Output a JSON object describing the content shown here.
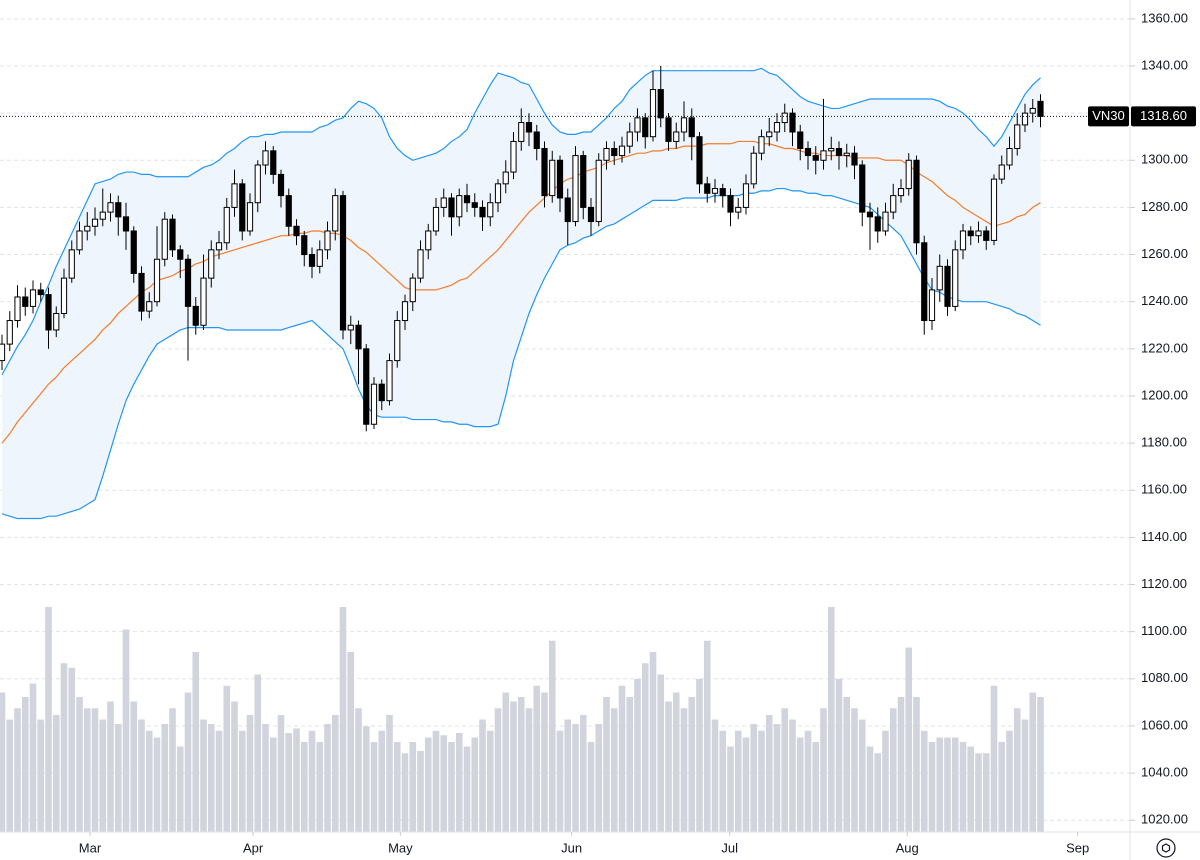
{
  "chart_data": {
    "type": "candlestick",
    "ylim": [
      1015,
      1368
    ],
    "yticks": [
      {
        "value": 1020,
        "label": "1020.00"
      },
      {
        "value": 1040,
        "label": "1040.00"
      },
      {
        "value": 1060,
        "label": "1060.00"
      },
      {
        "value": 1080,
        "label": "1080.00"
      },
      {
        "value": 1100,
        "label": "1100.00"
      },
      {
        "value": 1120,
        "label": "1120.00"
      },
      {
        "value": 1140,
        "label": "1140.00"
      },
      {
        "value": 1160,
        "label": "1160.00"
      },
      {
        "value": 1180,
        "label": "1180.00"
      },
      {
        "value": 1200,
        "label": "1200.00"
      },
      {
        "value": 1220,
        "label": "1220.00"
      },
      {
        "value": 1240,
        "label": "1240.00"
      },
      {
        "value": 1260,
        "label": "1260.00"
      },
      {
        "value": 1280,
        "label": "1280.00"
      },
      {
        "value": 1300,
        "label": "1300.00"
      },
      {
        "value": 1320,
        "label": "1320.00"
      },
      {
        "value": 1340,
        "label": "1340.00"
      },
      {
        "value": 1360,
        "label": "1360.00"
      }
    ],
    "xlim": [
      -0.26,
      145.55
    ],
    "xticks": [
      {
        "value": 11.35,
        "label": "Mar"
      },
      {
        "value": 32.4,
        "label": "Apr"
      },
      {
        "value": 51.4,
        "label": "May"
      },
      {
        "value": 73.5,
        "label": "Jun"
      },
      {
        "value": 93.9,
        "label": "Jul"
      },
      {
        "value": 116.8,
        "label": "Aug"
      },
      {
        "value": 138.8,
        "label": "Sep"
      }
    ],
    "grid": true,
    "up_color": "#ffffff",
    "down_color": "#000000",
    "volume_color": "#d1d4dc",
    "last_price": {
      "value": 1318.6,
      "label": "1318.60"
    },
    "series": [
      {
        "name": "VN30",
        "open": [
          1215,
          1222,
          1232,
          1242,
          1238,
          1245,
          1243,
          1228,
          1235,
          1250,
          1262,
          1270,
          1272,
          1275,
          1278,
          1282,
          1276,
          1270,
          1252,
          1236,
          1240,
          1258,
          1275,
          1262,
          1258,
          1238,
          1230,
          1250,
          1262,
          1265,
          1280,
          1290,
          1270,
          1282,
          1298,
          1304,
          1294,
          1285,
          1272,
          1268,
          1260,
          1255,
          1262,
          1270,
          1285,
          1228,
          1230,
          1220,
          1188,
          1205,
          1198,
          1215,
          1232,
          1240,
          1250,
          1262,
          1270,
          1280,
          1284,
          1276,
          1285,
          1282,
          1280,
          1276,
          1282,
          1290,
          1295,
          1308,
          1316,
          1312,
          1305,
          1285,
          1300,
          1284,
          1274,
          1302,
          1280,
          1274,
          1300,
          1305,
          1302,
          1306,
          1312,
          1318,
          1310,
          1330,
          1318,
          1308,
          1312,
          1318,
          1310,
          1290,
          1286,
          1288,
          1285,
          1278,
          1280,
          1290,
          1303,
          1310,
          1312,
          1316,
          1320,
          1312,
          1305,
          1302,
          1300,
          1304,
          1305,
          1302,
          1303,
          1298,
          1278,
          1276,
          1270,
          1278,
          1285,
          1288,
          1300,
          1265,
          1232,
          1245,
          1255,
          1238,
          1262,
          1270,
          1268,
          1270,
          1266,
          1292,
          1298,
          1305,
          1315,
          1320,
          1325
        ],
        "high": [
          1226,
          1236,
          1247,
          1246,
          1249,
          1248,
          1246,
          1238,
          1254,
          1266,
          1274,
          1278,
          1280,
          1288,
          1286,
          1285,
          1282,
          1272,
          1255,
          1244,
          1272,
          1278,
          1277,
          1264,
          1260,
          1242,
          1260,
          1266,
          1270,
          1284,
          1296,
          1292,
          1286,
          1300,
          1308,
          1306,
          1296,
          1288,
          1275,
          1270,
          1263,
          1266,
          1274,
          1288,
          1287,
          1234,
          1232,
          1222,
          1208,
          1207,
          1218,
          1236,
          1243,
          1252,
          1266,
          1273,
          1284,
          1288,
          1286,
          1288,
          1290,
          1286,
          1283,
          1286,
          1292,
          1300,
          1312,
          1322,
          1320,
          1315,
          1308,
          1304,
          1302,
          1288,
          1306,
          1304,
          1284,
          1303,
          1308,
          1308,
          1310,
          1316,
          1322,
          1320,
          1338,
          1340,
          1320,
          1316,
          1325,
          1322,
          1312,
          1293,
          1292,
          1290,
          1288,
          1284,
          1294,
          1306,
          1313,
          1318,
          1320,
          1324,
          1322,
          1315,
          1308,
          1306,
          1326,
          1310,
          1308,
          1307,
          1306,
          1300,
          1282,
          1280,
          1282,
          1290,
          1292,
          1303,
          1302,
          1268,
          1250,
          1260,
          1258,
          1266,
          1273,
          1272,
          1274,
          1272,
          1294,
          1302,
          1310,
          1320,
          1324,
          1326,
          1328
        ],
        "low": [
          1211,
          1219,
          1229,
          1234,
          1235,
          1240,
          1220,
          1225,
          1233,
          1248,
          1260,
          1266,
          1268,
          1272,
          1274,
          1268,
          1262,
          1248,
          1232,
          1233,
          1238,
          1255,
          1259,
          1250,
          1215,
          1226,
          1228,
          1246,
          1258,
          1262,
          1276,
          1266,
          1268,
          1278,
          1294,
          1290,
          1280,
          1268,
          1264,
          1255,
          1250,
          1252,
          1258,
          1266,
          1224,
          1222,
          1205,
          1185,
          1186,
          1194,
          1196,
          1212,
          1228,
          1236,
          1248,
          1258,
          1268,
          1276,
          1268,
          1272,
          1278,
          1276,
          1270,
          1272,
          1278,
          1286,
          1292,
          1304,
          1306,
          1300,
          1280,
          1282,
          1278,
          1264,
          1272,
          1275,
          1268,
          1272,
          1296,
          1298,
          1299,
          1303,
          1308,
          1305,
          1308,
          1314,
          1304,
          1305,
          1308,
          1300,
          1286,
          1282,
          1282,
          1280,
          1272,
          1275,
          1277,
          1288,
          1300,
          1306,
          1308,
          1312,
          1306,
          1300,
          1296,
          1294,
          1296,
          1300,
          1296,
          1297,
          1292,
          1272,
          1262,
          1265,
          1268,
          1275,
          1282,
          1285,
          1260,
          1226,
          1228,
          1240,
          1234,
          1236,
          1258,
          1264,
          1265,
          1262,
          1264,
          1290,
          1296,
          1302,
          1312,
          1316,
          1314
        ],
        "close": [
          1222,
          1232,
          1242,
          1238,
          1245,
          1243,
          1228,
          1235,
          1250,
          1262,
          1270,
          1272,
          1275,
          1278,
          1282,
          1276,
          1270,
          1252,
          1236,
          1240,
          1258,
          1275,
          1262,
          1258,
          1238,
          1230,
          1250,
          1262,
          1265,
          1280,
          1290,
          1270,
          1282,
          1298,
          1304,
          1294,
          1285,
          1272,
          1268,
          1260,
          1255,
          1262,
          1270,
          1285,
          1228,
          1230,
          1220,
          1188,
          1205,
          1198,
          1215,
          1232,
          1240,
          1250,
          1262,
          1270,
          1280,
          1284,
          1276,
          1285,
          1282,
          1280,
          1276,
          1282,
          1290,
          1295,
          1308,
          1316,
          1312,
          1305,
          1285,
          1300,
          1284,
          1274,
          1302,
          1280,
          1274,
          1300,
          1305,
          1302,
          1306,
          1312,
          1318,
          1310,
          1330,
          1318,
          1308,
          1312,
          1318,
          1310,
          1290,
          1286,
          1288,
          1285,
          1278,
          1280,
          1290,
          1303,
          1310,
          1312,
          1316,
          1320,
          1312,
          1305,
          1302,
          1300,
          1304,
          1305,
          1302,
          1303,
          1298,
          1278,
          1276,
          1270,
          1278,
          1285,
          1288,
          1300,
          1265,
          1232,
          1245,
          1255,
          1238,
          1262,
          1270,
          1268,
          1270,
          1266,
          1292,
          1298,
          1305,
          1315,
          1320,
          1322,
          1318.6
        ],
        "volume": [
          62,
          50,
          55,
          60,
          66,
          50,
          100,
          52,
          75,
          73,
          60,
          55,
          55,
          50,
          58,
          48,
          90,
          58,
          50,
          45,
          42,
          48,
          55,
          38,
          62,
          80,
          50,
          48,
          45,
          65,
          58,
          45,
          52,
          70,
          48,
          42,
          52,
          44,
          46,
          40,
          45,
          40,
          48,
          52,
          100,
          80,
          55,
          47,
          40,
          45,
          52,
          40,
          35,
          40,
          36,
          42,
          45,
          43,
          40,
          44,
          38,
          42,
          50,
          45,
          55,
          62,
          58,
          60,
          55,
          65,
          62,
          85,
          45,
          50,
          48,
          52,
          40,
          48,
          60,
          55,
          65,
          60,
          68,
          75,
          80,
          70,
          58,
          62,
          55,
          60,
          68,
          85,
          50,
          45,
          38,
          45,
          42,
          48,
          45,
          52,
          48,
          55,
          50,
          42,
          45,
          40,
          55,
          100,
          68,
          60,
          55,
          50,
          38,
          35,
          45,
          55,
          60,
          82,
          60,
          45,
          40,
          42,
          42,
          42,
          40,
          38,
          35,
          35,
          65,
          40,
          45,
          55,
          50,
          62,
          60
        ]
      }
    ],
    "bollinger": {
      "color": "#2196f3",
      "fill": "#eef5fd",
      "upper": [
        1209,
        1215,
        1221,
        1226,
        1232,
        1240,
        1247,
        1255,
        1262,
        1269,
        1276,
        1283,
        1290,
        1291,
        1292,
        1294,
        1295,
        1295,
        1294,
        1294,
        1293,
        1293,
        1293,
        1293,
        1293,
        1295,
        1297,
        1298,
        1300,
        1303,
        1305,
        1308,
        1310,
        1310,
        1311,
        1311,
        1312,
        1312,
        1312,
        1312,
        1312,
        1314,
        1315,
        1317,
        1318,
        1322,
        1325,
        1324,
        1322,
        1318,
        1310,
        1305,
        1302,
        1300,
        1301,
        1302,
        1303,
        1305,
        1308,
        1310,
        1313,
        1320,
        1326,
        1332,
        1337,
        1336,
        1335,
        1333,
        1332,
        1326,
        1320,
        1315,
        1312,
        1311,
        1311,
        1312,
        1312,
        1315,
        1318,
        1322,
        1325,
        1330,
        1333,
        1336,
        1338,
        1338,
        1338,
        1338,
        1338,
        1338,
        1338,
        1338,
        1338,
        1338,
        1338,
        1338,
        1338,
        1338,
        1339,
        1337,
        1336,
        1333,
        1330,
        1327,
        1325,
        1324,
        1323,
        1322,
        1322,
        1323,
        1324,
        1325,
        1326,
        1326,
        1326,
        1326,
        1326,
        1326,
        1326,
        1326,
        1326,
        1325,
        1323,
        1322,
        1320,
        1317,
        1313,
        1310,
        1306,
        1310,
        1316,
        1322,
        1328,
        1332,
        1335
      ],
      "lower": [
        1150,
        1149,
        1148,
        1148,
        1148,
        1148,
        1149,
        1149,
        1150,
        1151,
        1152,
        1154,
        1156,
        1166,
        1177,
        1188,
        1198,
        1205,
        1211,
        1217,
        1222,
        1224,
        1226,
        1228,
        1229,
        1229,
        1229,
        1229,
        1229,
        1228,
        1228,
        1228,
        1228,
        1228,
        1228,
        1228,
        1228,
        1229,
        1230,
        1231,
        1232,
        1229,
        1226,
        1223,
        1220,
        1212,
        1203,
        1196,
        1192,
        1191,
        1191,
        1191,
        1191,
        1190,
        1190,
        1190,
        1190,
        1189,
        1189,
        1188,
        1188,
        1187,
        1187,
        1187,
        1188,
        1200,
        1215,
        1225,
        1235,
        1243,
        1250,
        1256,
        1262,
        1264,
        1265,
        1267,
        1268,
        1270,
        1272,
        1273,
        1275,
        1277,
        1279,
        1281,
        1283,
        1283,
        1283,
        1283,
        1284,
        1284,
        1284,
        1284,
        1285,
        1285,
        1285,
        1285,
        1286,
        1286,
        1287,
        1287,
        1288,
        1288,
        1287,
        1287,
        1286,
        1286,
        1285,
        1285,
        1284,
        1283,
        1282,
        1281,
        1280,
        1277,
        1274,
        1271,
        1268,
        1262,
        1256,
        1250,
        1245,
        1244,
        1242,
        1241,
        1240,
        1240,
        1240,
        1240,
        1239,
        1238,
        1237,
        1235,
        1234,
        1232,
        1230
      ]
    },
    "moving_average": {
      "color": "#f57c2a",
      "values": [
        1180,
        1184,
        1189,
        1193,
        1197,
        1201,
        1205,
        1208,
        1212,
        1215,
        1218,
        1221,
        1224,
        1228,
        1231,
        1235,
        1238,
        1241,
        1244,
        1246,
        1249,
        1250,
        1251,
        1253,
        1254,
        1256,
        1257,
        1259,
        1260,
        1261,
        1262,
        1263,
        1264,
        1265,
        1266,
        1267,
        1268,
        1268,
        1269,
        1269,
        1270,
        1270,
        1269,
        1269,
        1268,
        1266,
        1263,
        1261,
        1258,
        1255,
        1252,
        1249,
        1246,
        1245,
        1245,
        1245,
        1245,
        1246,
        1247,
        1249,
        1250,
        1253,
        1256,
        1259,
        1262,
        1266,
        1270,
        1274,
        1278,
        1281,
        1284,
        1287,
        1290,
        1292,
        1293,
        1295,
        1296,
        1297,
        1299,
        1300,
        1301,
        1302,
        1303,
        1303,
        1304,
        1304,
        1305,
        1305,
        1306,
        1306,
        1306,
        1307,
        1307,
        1307,
        1307,
        1308,
        1308,
        1308,
        1307,
        1307,
        1306,
        1305,
        1305,
        1304,
        1303,
        1303,
        1302,
        1302,
        1302,
        1302,
        1301,
        1301,
        1301,
        1301,
        1300,
        1300,
        1300,
        1298,
        1295,
        1293,
        1291,
        1288,
        1285,
        1283,
        1280,
        1278,
        1276,
        1274,
        1272,
        1273,
        1274,
        1276,
        1277,
        1280,
        1282
      ]
    }
  }
}
